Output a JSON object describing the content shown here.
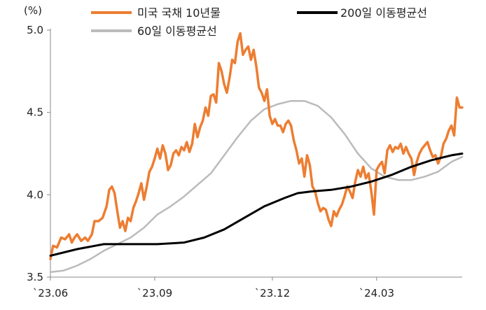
{
  "chart_data": {
    "type": "line",
    "unit_label": "(%)",
    "ylim": [
      3.5,
      5.0
    ],
    "y_ticks": [
      "3.5",
      "4.0",
      "4.5",
      "5.0"
    ],
    "x_ticks": [
      "`23.06",
      "`23.09",
      "`23.12",
      "`24.03"
    ],
    "grid": false,
    "legend_placement": "top",
    "series": [
      {
        "name": "미국 국채 10년물",
        "color": "#ED7D31",
        "points": [
          [
            0,
            3.61
          ],
          [
            2,
            3.69
          ],
          [
            5,
            3.68
          ],
          [
            8,
            3.74
          ],
          [
            11,
            3.73
          ],
          [
            14,
            3.76
          ],
          [
            16,
            3.71
          ],
          [
            18,
            3.74
          ],
          [
            20,
            3.76
          ],
          [
            23,
            3.72
          ],
          [
            26,
            3.74
          ],
          [
            28,
            3.72
          ],
          [
            31,
            3.76
          ],
          [
            33,
            3.84
          ],
          [
            36,
            3.84
          ],
          [
            39,
            3.86
          ],
          [
            42,
            3.93
          ],
          [
            44,
            4.03
          ],
          [
            46,
            4.05
          ],
          [
            48,
            4.01
          ],
          [
            50,
            3.9
          ],
          [
            52,
            3.8
          ],
          [
            54,
            3.84
          ],
          [
            56,
            3.78
          ],
          [
            58,
            3.86
          ],
          [
            60,
            3.84
          ],
          [
            62,
            3.92
          ],
          [
            64,
            3.96
          ],
          [
            66,
            4.01
          ],
          [
            68,
            4.07
          ],
          [
            70,
            3.97
          ],
          [
            72,
            4.05
          ],
          [
            74,
            4.14
          ],
          [
            76,
            4.17
          ],
          [
            78,
            4.22
          ],
          [
            80,
            4.28
          ],
          [
            82,
            4.22
          ],
          [
            84,
            4.3
          ],
          [
            86,
            4.25
          ],
          [
            88,
            4.15
          ],
          [
            90,
            4.18
          ],
          [
            92,
            4.25
          ],
          [
            94,
            4.27
          ],
          [
            96,
            4.24
          ],
          [
            98,
            4.29
          ],
          [
            100,
            4.27
          ],
          [
            102,
            4.32
          ],
          [
            104,
            4.26
          ],
          [
            106,
            4.31
          ],
          [
            108,
            4.43
          ],
          [
            110,
            4.35
          ],
          [
            112,
            4.41
          ],
          [
            114,
            4.45
          ],
          [
            116,
            4.53
          ],
          [
            118,
            4.48
          ],
          [
            120,
            4.6
          ],
          [
            122,
            4.61
          ],
          [
            124,
            4.56
          ],
          [
            126,
            4.8
          ],
          [
            128,
            4.75
          ],
          [
            130,
            4.67
          ],
          [
            132,
            4.62
          ],
          [
            134,
            4.71
          ],
          [
            136,
            4.82
          ],
          [
            138,
            4.8
          ],
          [
            140,
            4.93
          ],
          [
            142,
            4.98
          ],
          [
            144,
            4.85
          ],
          [
            146,
            4.88
          ],
          [
            148,
            4.9
          ],
          [
            150,
            4.82
          ],
          [
            152,
            4.88
          ],
          [
            154,
            4.78
          ],
          [
            156,
            4.65
          ],
          [
            158,
            4.62
          ],
          [
            160,
            4.57
          ],
          [
            162,
            4.64
          ],
          [
            164,
            4.48
          ],
          [
            166,
            4.43
          ],
          [
            168,
            4.46
          ],
          [
            170,
            4.42
          ],
          [
            172,
            4.42
          ],
          [
            174,
            4.38
          ],
          [
            176,
            4.43
          ],
          [
            178,
            4.45
          ],
          [
            180,
            4.42
          ],
          [
            182,
            4.33
          ],
          [
            184,
            4.27
          ],
          [
            186,
            4.19
          ],
          [
            188,
            4.22
          ],
          [
            190,
            4.11
          ],
          [
            192,
            4.24
          ],
          [
            194,
            4.18
          ],
          [
            196,
            4.05
          ],
          [
            198,
            4.02
          ],
          [
            200,
            3.95
          ],
          [
            202,
            3.9
          ],
          [
            204,
            3.92
          ],
          [
            206,
            3.91
          ],
          [
            208,
            3.85
          ],
          [
            210,
            3.81
          ],
          [
            212,
            3.9
          ],
          [
            214,
            3.87
          ],
          [
            216,
            3.91
          ],
          [
            218,
            3.94
          ],
          [
            220,
            3.99
          ],
          [
            222,
            4.05
          ],
          [
            224,
            4.02
          ],
          [
            226,
            3.98
          ],
          [
            228,
            4.08
          ],
          [
            230,
            4.15
          ],
          [
            232,
            4.11
          ],
          [
            234,
            4.17
          ],
          [
            236,
            4.1
          ],
          [
            238,
            4.13
          ],
          [
            240,
            4.02
          ],
          [
            242,
            3.88
          ],
          [
            244,
            4.15
          ],
          [
            246,
            4.18
          ],
          [
            248,
            4.2
          ],
          [
            250,
            4.13
          ],
          [
            252,
            4.27
          ],
          [
            254,
            4.3
          ],
          [
            256,
            4.26
          ],
          [
            258,
            4.29
          ],
          [
            260,
            4.28
          ],
          [
            262,
            4.31
          ],
          [
            264,
            4.25
          ],
          [
            266,
            4.29
          ],
          [
            268,
            4.25
          ],
          [
            270,
            4.22
          ],
          [
            272,
            4.12
          ],
          [
            274,
            4.2
          ],
          [
            276,
            4.25
          ],
          [
            278,
            4.28
          ],
          [
            280,
            4.3
          ],
          [
            282,
            4.32
          ],
          [
            284,
            4.27
          ],
          [
            286,
            4.23
          ],
          [
            288,
            4.24
          ],
          [
            290,
            4.19
          ],
          [
            292,
            4.23
          ],
          [
            294,
            4.31
          ],
          [
            296,
            4.34
          ],
          [
            298,
            4.39
          ],
          [
            300,
            4.42
          ],
          [
            302,
            4.36
          ],
          [
            304,
            4.59
          ],
          [
            306,
            4.53
          ],
          [
            308,
            4.53
          ]
        ]
      },
      {
        "name": "200일 이동평균선",
        "color": "#000000",
        "points": [
          [
            0,
            3.63
          ],
          [
            20,
            3.67
          ],
          [
            40,
            3.7
          ],
          [
            60,
            3.7
          ],
          [
            80,
            3.7
          ],
          [
            100,
            3.71
          ],
          [
            115,
            3.74
          ],
          [
            130,
            3.79
          ],
          [
            145,
            3.86
          ],
          [
            160,
            3.93
          ],
          [
            175,
            3.98
          ],
          [
            185,
            4.01
          ],
          [
            195,
            4.02
          ],
          [
            210,
            4.03
          ],
          [
            225,
            4.05
          ],
          [
            240,
            4.08
          ],
          [
            255,
            4.12
          ],
          [
            270,
            4.17
          ],
          [
            285,
            4.21
          ],
          [
            300,
            4.24
          ],
          [
            308,
            4.25
          ]
        ]
      },
      {
        "name": "60일 이동평균선",
        "color": "#BBBBBB",
        "points": [
          [
            0,
            3.53
          ],
          [
            10,
            3.54
          ],
          [
            20,
            3.57
          ],
          [
            30,
            3.61
          ],
          [
            40,
            3.66
          ],
          [
            50,
            3.7
          ],
          [
            60,
            3.74
          ],
          [
            70,
            3.8
          ],
          [
            80,
            3.88
          ],
          [
            90,
            3.93
          ],
          [
            100,
            3.99
          ],
          [
            110,
            4.06
          ],
          [
            120,
            4.13
          ],
          [
            130,
            4.24
          ],
          [
            140,
            4.35
          ],
          [
            150,
            4.45
          ],
          [
            160,
            4.52
          ],
          [
            170,
            4.55
          ],
          [
            180,
            4.57
          ],
          [
            190,
            4.57
          ],
          [
            200,
            4.54
          ],
          [
            210,
            4.47
          ],
          [
            220,
            4.37
          ],
          [
            230,
            4.25
          ],
          [
            240,
            4.16
          ],
          [
            250,
            4.11
          ],
          [
            260,
            4.09
          ],
          [
            270,
            4.09
          ],
          [
            280,
            4.11
          ],
          [
            290,
            4.14
          ],
          [
            300,
            4.2
          ],
          [
            308,
            4.23
          ]
        ]
      }
    ]
  }
}
